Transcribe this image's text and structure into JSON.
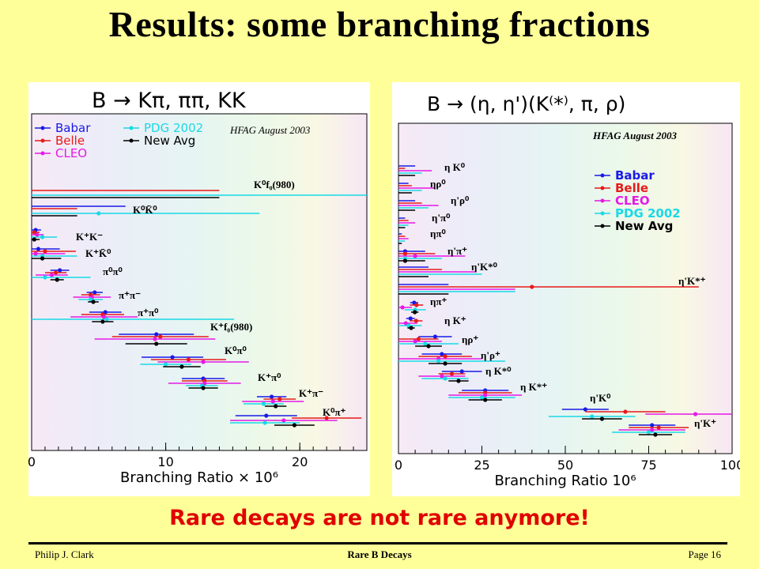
{
  "slide": {
    "title": "Results: some branching fractions",
    "conclusion": "Rare decays are not rare anymore!",
    "footer_author": "Philip J. Clark",
    "footer_center": "Rare B Decays",
    "footer_page": "Page 16"
  },
  "chart_data": [
    {
      "type": "scatter",
      "title": "B → Kπ, ππ, KK",
      "stamp": "HFAG August 2003",
      "xlabel": "Branching Ratio × 10⁶",
      "xlim": [
        0,
        25
      ],
      "xticks": [
        0,
        10,
        20
      ],
      "legend": [
        "Babar",
        "Belle",
        "CLEO",
        "PDG 2002",
        "New Avg"
      ],
      "legend_position": "top-left",
      "series_colors": {
        "Babar": "#1a1ae6",
        "Belle": "#e61a1a",
        "CLEO": "#e619e6",
        "PDG 2002": "#19d9e6",
        "New Avg": "#000000"
      },
      "channels": [
        {
          "label": "K⁰f₀(980)",
          "points": [
            {
              "series": "Belle",
              "value": -20,
              "err": 34
            },
            {
              "series": "PDG 2002",
              "value": -20,
              "err": 45
            },
            {
              "series": "New Avg",
              "value": -20,
              "err": 34
            }
          ]
        },
        {
          "label": "K⁰K̄⁰",
          "points": [
            {
              "series": "Babar",
              "value": -5,
              "err": 12
            },
            {
              "series": "Belle",
              "value": -5,
              "err": 8.4
            },
            {
              "series": "PDG 2002",
              "value": 5,
              "err": 12
            },
            {
              "series": "New Avg",
              "value": -5,
              "err": 8.4
            }
          ]
        },
        {
          "label": "K⁺K⁻",
          "points": [
            {
              "series": "Babar",
              "value": 0.3,
              "err": 0.4
            },
            {
              "series": "Belle",
              "value": 0.2,
              "err": 0.4
            },
            {
              "series": "CLEO",
              "value": 0.4,
              "err": 0.5
            },
            {
              "series": "PDG 2002",
              "value": 0.8,
              "err": 1.1
            },
            {
              "series": "New Avg",
              "value": 0.2,
              "err": 0.4
            }
          ]
        },
        {
          "label": "K⁺K̄⁰",
          "points": [
            {
              "series": "Babar",
              "value": 0.5,
              "err": 1.6
            },
            {
              "series": "Belle",
              "value": 1.0,
              "err": 2.3
            },
            {
              "series": "CLEO",
              "value": 0.3,
              "err": 2.2
            },
            {
              "series": "PDG 2002",
              "value": 0.8,
              "err": 2.6
            },
            {
              "series": "New Avg",
              "value": 0.8,
              "err": 1.4
            }
          ]
        },
        {
          "label": "π⁰π⁰",
          "points": [
            {
              "series": "Babar",
              "value": 2.1,
              "err": 0.7
            },
            {
              "series": "Belle",
              "value": 1.8,
              "err": 0.8
            },
            {
              "series": "CLEO",
              "value": 1.5,
              "err": 1.2
            },
            {
              "series": "PDG 2002",
              "value": 1.0,
              "err": 3.4
            },
            {
              "series": "New Avg",
              "value": 1.9,
              "err": 0.5
            }
          ]
        },
        {
          "label": "π⁺π⁻",
          "points": [
            {
              "series": "Babar",
              "value": 4.7,
              "err": 0.6
            },
            {
              "series": "Belle",
              "value": 4.4,
              "err": 0.7
            },
            {
              "series": "CLEO",
              "value": 4.5,
              "err": 1.4
            },
            {
              "series": "PDG 2002",
              "value": 4.4,
              "err": 0.9
            },
            {
              "series": "New Avg",
              "value": 4.6,
              "err": 0.4
            }
          ]
        },
        {
          "label": "π⁺π⁰",
          "points": [
            {
              "series": "Babar",
              "value": 5.5,
              "err": 1.2
            },
            {
              "series": "Belle",
              "value": 5.3,
              "err": 1.6
            },
            {
              "series": "CLEO",
              "value": 5.4,
              "err": 2.5
            },
            {
              "series": "PDG 2002",
              "value": 5.6,
              "err": 9.5
            },
            {
              "series": "New Avg",
              "value": 5.3,
              "err": 0.8
            }
          ]
        },
        {
          "label": "K⁺f₀(980)",
          "points": [
            {
              "series": "Babar",
              "value": 9.3,
              "err": 2.8
            },
            {
              "series": "Belle",
              "value": 9.6,
              "err": 3.6
            },
            {
              "series": "CLEO",
              "value": 9.2,
              "err": 4.5
            },
            {
              "series": "New Avg",
              "value": 9.3,
              "err": 2.3
            }
          ]
        },
        {
          "label": "K⁰π⁰",
          "points": [
            {
              "series": "Babar",
              "value": 10.5,
              "err": 2.3
            },
            {
              "series": "Belle",
              "value": 11.7,
              "err": 2.8
            },
            {
              "series": "CLEO",
              "value": 12.8,
              "err": 3.4
            },
            {
              "series": "PDG 2002",
              "value": 10.0,
              "err": 1.9
            },
            {
              "series": "New Avg",
              "value": 11.2,
              "err": 1.4
            }
          ]
        },
        {
          "label": "K⁺π⁰",
          "points": [
            {
              "series": "Babar",
              "value": 12.8,
              "err": 1.6
            },
            {
              "series": "Belle",
              "value": 12.9,
              "err": 1.7
            },
            {
              "series": "CLEO",
              "value": 12.9,
              "err": 2.7
            },
            {
              "series": "PDG 2002",
              "value": 12.7,
              "err": 1.2
            },
            {
              "series": "New Avg",
              "value": 12.8,
              "err": 1.1
            }
          ]
        },
        {
          "label": "K⁺π⁻",
          "points": [
            {
              "series": "Babar",
              "value": 17.9,
              "err": 1.1
            },
            {
              "series": "Belle",
              "value": 18.5,
              "err": 1.2
            },
            {
              "series": "CLEO",
              "value": 18.0,
              "err": 2.3
            },
            {
              "series": "PDG 2002",
              "value": 17.3,
              "err": 1.5
            },
            {
              "series": "New Avg",
              "value": 18.2,
              "err": 0.8
            }
          ]
        },
        {
          "label": "K⁰π⁺",
          "points": [
            {
              "series": "Babar",
              "value": 17.5,
              "err": 2.3
            },
            {
              "series": "Belle",
              "value": 22.0,
              "err": 2.6
            },
            {
              "series": "CLEO",
              "value": 18.8,
              "err": 4.0
            },
            {
              "series": "PDG 2002",
              "value": 17.4,
              "err": 2.6
            },
            {
              "series": "New Avg",
              "value": 19.6,
              "err": 1.5
            }
          ]
        }
      ]
    },
    {
      "type": "scatter",
      "title": "B → (η, η')(K⁽*⁾, π, ρ)",
      "stamp": "HFAG August 2003",
      "xlabel": "Branching Ratio 10⁶",
      "xlim": [
        0,
        100
      ],
      "xticks": [
        0,
        25,
        50,
        75,
        100
      ],
      "legend": [
        "Babar",
        "Belle",
        "CLEO",
        "PDG 2002",
        "New Avg"
      ],
      "legend_position": "top-right",
      "series_colors": {
        "Babar": "#1a1ae6",
        "Belle": "#e61a1a",
        "CLEO": "#e619e6",
        "PDG 2002": "#19d9e6",
        "New Avg": "#000000"
      },
      "channels": [
        {
          "label": "η K⁰",
          "points": [
            {
              "series": "Babar",
              "value": -5,
              "err": 10
            },
            {
              "series": "Belle",
              "value": -5,
              "err": 7
            },
            {
              "series": "CLEO",
              "value": -5,
              "err": 15
            },
            {
              "series": "PDG 2002",
              "value": -5,
              "err": 12
            },
            {
              "series": "New Avg",
              "value": -5,
              "err": 10
            }
          ]
        },
        {
          "label": "ηρ⁰",
          "points": [
            {
              "series": "Babar",
              "value": -5,
              "err": 8
            },
            {
              "series": "Belle",
              "value": -5,
              "err": 9
            },
            {
              "series": "CLEO",
              "value": -5,
              "err": 16
            },
            {
              "series": "PDG 2002",
              "value": -5,
              "err": 12
            },
            {
              "series": "New Avg",
              "value": -5,
              "err": 9
            }
          ]
        },
        {
          "label": "η'ρ⁰",
          "points": [
            {
              "series": "Babar",
              "value": -5,
              "err": 10
            },
            {
              "series": "Belle",
              "value": -5,
              "err": 12
            },
            {
              "series": "CLEO",
              "value": -5,
              "err": 17
            },
            {
              "series": "PDG 2002",
              "value": -5,
              "err": 14
            },
            {
              "series": "New Avg",
              "value": -5,
              "err": 10
            }
          ]
        },
        {
          "label": "η'π⁰",
          "points": [
            {
              "series": "Babar",
              "value": -5,
              "err": 7
            },
            {
              "series": "Belle",
              "value": -5,
              "err": 8
            },
            {
              "series": "CLEO",
              "value": -5,
              "err": 10
            },
            {
              "series": "PDG 2002",
              "value": -5,
              "err": 8
            },
            {
              "series": "New Avg",
              "value": -5,
              "err": 7
            }
          ]
        },
        {
          "label": "ηπ⁰",
          "points": [
            {
              "series": "Babar",
              "value": -5,
              "err": 6
            },
            {
              "series": "Belle",
              "value": -5,
              "err": 7
            },
            {
              "series": "CLEO",
              "value": -5,
              "err": 8
            },
            {
              "series": "PDG 2002",
              "value": -5,
              "err": 7
            },
            {
              "series": "New Avg",
              "value": -5,
              "err": 6
            }
          ]
        },
        {
          "label": "η'π⁺",
          "points": [
            {
              "series": "Babar",
              "value": 2,
              "err": 6
            },
            {
              "series": "Belle",
              "value": 2,
              "err": 9
            },
            {
              "series": "CLEO",
              "value": 5,
              "err": 15
            },
            {
              "series": "PDG 2002",
              "value": 2,
              "err": 11
            },
            {
              "series": "New Avg",
              "value": 2,
              "err": 6
            }
          ]
        },
        {
          "label": "η'K*⁰",
          "points": [
            {
              "series": "Babar",
              "value": -5,
              "err": 14
            },
            {
              "series": "Belle",
              "value": -5,
              "err": 18
            },
            {
              "series": "CLEO",
              "value": -5,
              "err": 28
            },
            {
              "series": "PDG 2002",
              "value": -5,
              "err": 30
            },
            {
              "series": "New Avg",
              "value": -5,
              "err": 14
            }
          ]
        },
        {
          "label": "η'K*⁺",
          "points": [
            {
              "series": "Babar",
              "value": -5,
              "err": 20
            },
            {
              "series": "Belle",
              "value": 40,
              "err": 50
            },
            {
              "series": "CLEO",
              "value": -5,
              "err": 40
            },
            {
              "series": "PDG 2002",
              "value": -5,
              "err": 40
            },
            {
              "series": "New Avg",
              "value": -5,
              "err": 20
            }
          ]
        },
        {
          "label": "ηπ⁺",
          "points": [
            {
              "series": "Babar",
              "value": 4.7,
              "err": 1.2
            },
            {
              "series": "Belle",
              "value": 5.4,
              "err": 2.0
            },
            {
              "series": "CLEO",
              "value": 1.2,
              "err": 2.8
            },
            {
              "series": "PDG 2002",
              "value": 5.0,
              "err": 3.2
            },
            {
              "series": "New Avg",
              "value": 4.9,
              "err": 1.1
            }
          ]
        },
        {
          "label": "η K⁺",
          "points": [
            {
              "series": "Babar",
              "value": 3.6,
              "err": 1.3
            },
            {
              "series": "Belle",
              "value": 5.3,
              "err": 1.9
            },
            {
              "series": "CLEO",
              "value": 2.2,
              "err": 3.4
            },
            {
              "series": "PDG 2002",
              "value": 3.0,
              "err": 4.0
            },
            {
              "series": "New Avg",
              "value": 3.8,
              "err": 1.1
            }
          ]
        },
        {
          "label": "ηρ⁺",
          "points": [
            {
              "series": "Babar",
              "value": 11,
              "err": 5
            },
            {
              "series": "Belle",
              "value": 6,
              "err": 6
            },
            {
              "series": "CLEO",
              "value": 5,
              "err": 8
            },
            {
              "series": "PDG 2002",
              "value": 8,
              "err": 10
            },
            {
              "series": "New Avg",
              "value": 9,
              "err": 4
            }
          ]
        },
        {
          "label": "η'ρ⁺",
          "points": [
            {
              "series": "Babar",
              "value": 13,
              "err": 6
            },
            {
              "series": "Belle",
              "value": 14,
              "err": 8
            },
            {
              "series": "CLEO",
              "value": 12,
              "err": 13
            },
            {
              "series": "PDG 2002",
              "value": 12,
              "err": 20
            },
            {
              "series": "New Avg",
              "value": 14,
              "err": 5
            }
          ]
        },
        {
          "label": "η K*⁰",
          "points": [
            {
              "series": "Babar",
              "value": 19,
              "err": 6
            },
            {
              "series": "Belle",
              "value": 16,
              "err": 4
            },
            {
              "series": "CLEO",
              "value": 13,
              "err": 7
            },
            {
              "series": "PDG 2002",
              "value": 14,
              "err": 7
            },
            {
              "series": "New Avg",
              "value": 18,
              "err": 3
            }
          ]
        },
        {
          "label": "η K*⁺",
          "points": [
            {
              "series": "Babar",
              "value": 26,
              "err": 7
            },
            {
              "series": "Belle",
              "value": 26,
              "err": 8
            },
            {
              "series": "CLEO",
              "value": 26,
              "err": 11
            },
            {
              "series": "PDG 2002",
              "value": 25,
              "err": 10
            },
            {
              "series": "New Avg",
              "value": 26,
              "err": 5
            }
          ]
        },
        {
          "label": "η'K⁰",
          "points": [
            {
              "series": "Babar",
              "value": 56,
              "err": 7
            },
            {
              "series": "Belle",
              "value": 68,
              "err": 12
            },
            {
              "series": "CLEO",
              "value": 89,
              "err": 15
            },
            {
              "series": "PDG 2002",
              "value": 58,
              "err": 13
            },
            {
              "series": "New Avg",
              "value": 61,
              "err": 6
            }
          ]
        },
        {
          "label": "η'K⁺",
          "points": [
            {
              "series": "Babar",
              "value": 76,
              "err": 7
            },
            {
              "series": "Belle",
              "value": 78,
              "err": 9
            },
            {
              "series": "CLEO",
              "value": 76,
              "err": 10
            },
            {
              "series": "PDG 2002",
              "value": 75,
              "err": 11
            },
            {
              "series": "New Avg",
              "value": 77,
              "err": 5
            }
          ]
        }
      ]
    }
  ]
}
